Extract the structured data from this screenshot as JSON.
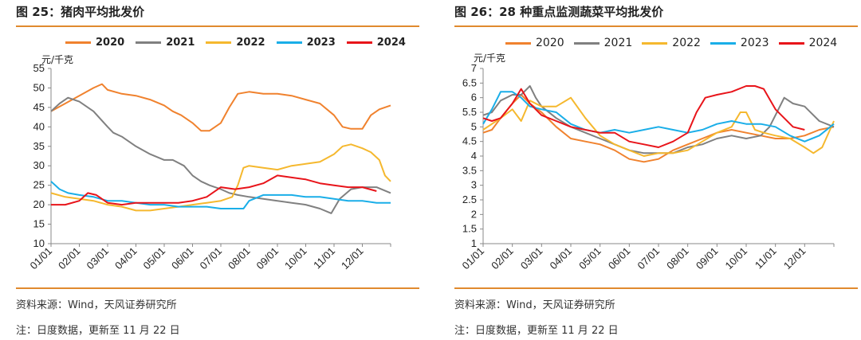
{
  "left_panel": {
    "title": "图 25：猪肉平均批发价",
    "source": "资料来源：Wind，天风证券研究所",
    "note": "注：日度数据，更新至 11 月 22 日"
  },
  "right_panel": {
    "title": "图 26：28 种重点监测蔬菜平均批发价",
    "source": "资料来源：Wind，天风证券研究所",
    "note": "注：日度数据，更新至 11 月 22 日"
  },
  "colors": {
    "2020": "#f0822e",
    "2021": "#808080",
    "2022": "#f5b82e",
    "2023": "#1aaee8",
    "2024": "#e8141a",
    "accent_rule": "#e08a2e"
  },
  "chart_data": [
    {
      "type": "line",
      "title": "",
      "ylabel": "元/千克",
      "xlabel": "",
      "ylim": [
        10,
        55
      ],
      "yticks": [
        10,
        15,
        20,
        25,
        30,
        35,
        40,
        45,
        50,
        55
      ],
      "categories": [
        "01/01",
        "02/01",
        "03/01",
        "04/01",
        "05/01",
        "06/01",
        "07/01",
        "08/01",
        "09/01",
        "10/01",
        "11/01",
        "12/01"
      ],
      "x_range": [
        0,
        12
      ],
      "legend_position": "top",
      "grid": false,
      "series": [
        {
          "name": "2020",
          "color": "#f0822e",
          "x": [
            0,
            0.5,
            1,
            1.5,
            1.8,
            2,
            2.5,
            3,
            3.5,
            4,
            4.3,
            4.6,
            5,
            5.3,
            5.6,
            6,
            6.3,
            6.6,
            7,
            7.5,
            8,
            8.5,
            9,
            9.5,
            10,
            10.3,
            10.6,
            11,
            11.3,
            11.6,
            12
          ],
          "y": [
            44,
            46,
            48,
            50,
            51,
            49.5,
            48.5,
            48,
            47,
            45.5,
            44,
            43,
            41,
            39,
            39,
            41,
            45,
            48.5,
            49,
            48.5,
            48.5,
            48,
            47,
            46,
            43,
            40,
            39.5,
            39.5,
            43,
            44.5,
            45.5
          ]
        },
        {
          "name": "2021",
          "color": "#808080",
          "x": [
            0,
            0.3,
            0.6,
            1,
            1.5,
            2,
            2.2,
            2.5,
            3,
            3.5,
            4,
            4.3,
            4.7,
            5,
            5.3,
            5.6,
            6,
            6.3,
            6.6,
            7,
            7.5,
            8,
            8.5,
            9,
            9.5,
            9.9,
            10.2,
            10.6,
            11,
            11.5,
            12
          ],
          "y": [
            44,
            46,
            47.5,
            46.5,
            44,
            40,
            38.5,
            37.5,
            35,
            33,
            31.5,
            31.5,
            30,
            27.5,
            26,
            25,
            24,
            23,
            22.5,
            22,
            21.5,
            21,
            20.5,
            20,
            19,
            17.8,
            21.5,
            24,
            24.5,
            24.5,
            23
          ]
        },
        {
          "name": "2022",
          "color": "#f5b82e",
          "x": [
            0,
            0.5,
            1,
            1.5,
            2,
            2.5,
            3,
            3.5,
            4,
            4.5,
            5,
            5.5,
            6,
            6.4,
            6.6,
            6.8,
            7,
            7.5,
            8,
            8.5,
            9,
            9.5,
            10,
            10.3,
            10.6,
            11,
            11.3,
            11.6,
            11.8,
            12
          ],
          "y": [
            23,
            22,
            21.5,
            21,
            20,
            19.5,
            18.5,
            18.5,
            19,
            19.5,
            20,
            20.5,
            21,
            22,
            25,
            29.5,
            30,
            29.5,
            29,
            30,
            30.5,
            31,
            33,
            35,
            35.5,
            34.5,
            33.5,
            31.5,
            27.5,
            26
          ]
        },
        {
          "name": "2023",
          "color": "#1aaee8",
          "x": [
            0,
            0.3,
            0.6,
            1,
            1.5,
            2,
            2.5,
            3,
            3.5,
            4,
            4.5,
            5,
            5.5,
            6,
            6.5,
            6.8,
            7,
            7.5,
            8,
            8.5,
            9,
            9.5,
            10,
            10.5,
            11,
            11.5,
            12
          ],
          "y": [
            26,
            24,
            23,
            22.5,
            22,
            21,
            21,
            20.5,
            20,
            20,
            19.5,
            19.5,
            19.5,
            19,
            19,
            19,
            21,
            22.5,
            22.5,
            22.5,
            22,
            22,
            21.5,
            21,
            21,
            20.5,
            20.5
          ]
        },
        {
          "name": "2024",
          "color": "#e8141a",
          "x": [
            0,
            0.5,
            1,
            1.3,
            1.6,
            2,
            2.5,
            3,
            3.5,
            4,
            4.5,
            5,
            5.5,
            6,
            6.5,
            7,
            7.5,
            8,
            8.5,
            9,
            9.5,
            10,
            10.5,
            11,
            11.5
          ],
          "y": [
            20,
            20,
            21,
            23,
            22.5,
            20.5,
            20,
            20.5,
            20.5,
            20.5,
            20.5,
            21,
            22,
            24.5,
            24,
            24.5,
            25.5,
            27.5,
            27,
            26.5,
            25.5,
            25,
            24.5,
            24.5,
            23.5
          ]
        }
      ]
    },
    {
      "type": "line",
      "title": "",
      "ylabel": "元/千克",
      "xlabel": "",
      "ylim": [
        1,
        7
      ],
      "yticks": [
        1,
        1.5,
        2,
        2.5,
        3,
        3.5,
        4,
        4.5,
        5,
        5.5,
        6,
        6.5,
        7
      ],
      "categories": [
        "01/01",
        "02/01",
        "03/01",
        "04/01",
        "05/01",
        "06/01",
        "07/01",
        "08/01",
        "09/01",
        "10/01",
        "11/01",
        "12/01"
      ],
      "x_range": [
        0,
        12
      ],
      "legend_position": "top",
      "grid": false,
      "series": [
        {
          "name": "2020",
          "color": "#f0822e",
          "x": [
            0,
            0.3,
            0.6,
            1,
            1.3,
            1.6,
            2,
            2.5,
            3,
            3.5,
            4,
            4.5,
            5,
            5.5,
            6,
            6.5,
            7,
            7.5,
            8,
            8.5,
            9,
            9.5,
            10,
            10.5,
            11,
            11.5,
            12
          ],
          "y": [
            4.8,
            4.9,
            5.3,
            5.8,
            6.1,
            5.8,
            5.5,
            5.0,
            4.6,
            4.5,
            4.4,
            4.2,
            3.9,
            3.8,
            3.9,
            4.2,
            4.4,
            4.6,
            4.8,
            4.9,
            4.8,
            4.7,
            4.6,
            4.6,
            4.7,
            4.9,
            5.0
          ]
        },
        {
          "name": "2021",
          "color": "#808080",
          "x": [
            0,
            0.3,
            0.6,
            1,
            1.3,
            1.6,
            1.8,
            2,
            2.5,
            3,
            3.5,
            4,
            4.5,
            5,
            5.5,
            6,
            6.5,
            7,
            7.5,
            8,
            8.5,
            9,
            9.5,
            9.8,
            10,
            10.3,
            10.6,
            11,
            11.5,
            12
          ],
          "y": [
            5.4,
            5.5,
            5.9,
            6.1,
            6.1,
            6.4,
            6.0,
            5.7,
            5.3,
            5.0,
            4.8,
            4.6,
            4.4,
            4.2,
            4.1,
            4.1,
            4.1,
            4.3,
            4.4,
            4.6,
            4.7,
            4.6,
            4.7,
            5.0,
            5.4,
            6.0,
            5.8,
            5.7,
            5.2,
            5.0
          ]
        },
        {
          "name": "2022",
          "color": "#f5b82e",
          "x": [
            0,
            0.3,
            0.6,
            1,
            1.3,
            1.6,
            2,
            2.5,
            3,
            3.5,
            4,
            4.5,
            5,
            5.5,
            6,
            6.5,
            7,
            7.5,
            8,
            8.5,
            8.8,
            9,
            9.3,
            9.6,
            10,
            10.5,
            11,
            11.3,
            11.6,
            12
          ],
          "y": [
            4.9,
            5.1,
            5.3,
            5.6,
            5.2,
            5.9,
            5.7,
            5.7,
            6.0,
            5.3,
            4.7,
            4.4,
            4.2,
            4.0,
            4.1,
            4.1,
            4.2,
            4.5,
            4.8,
            5.0,
            5.5,
            5.5,
            4.9,
            4.8,
            4.7,
            4.6,
            4.3,
            4.1,
            4.3,
            5.2
          ]
        },
        {
          "name": "2023",
          "color": "#1aaee8",
          "x": [
            0,
            0.3,
            0.6,
            1,
            1.3,
            1.6,
            2,
            2.5,
            3,
            3.5,
            4,
            4.5,
            5,
            5.5,
            6,
            6.5,
            7,
            7.5,
            8,
            8.5,
            9,
            9.5,
            10,
            10.5,
            11,
            11.5,
            12
          ],
          "y": [
            5.1,
            5.6,
            6.2,
            6.2,
            6.0,
            5.7,
            5.6,
            5.5,
            5.1,
            4.9,
            4.8,
            4.9,
            4.8,
            4.9,
            5.0,
            4.9,
            4.8,
            4.9,
            5.1,
            5.2,
            5.1,
            5.1,
            5.0,
            4.7,
            4.5,
            4.7,
            5.1
          ]
        },
        {
          "name": "2024",
          "color": "#e8141a",
          "x": [
            0,
            0.3,
            0.6,
            1,
            1.3,
            1.6,
            2,
            2.5,
            3,
            3.5,
            4,
            4.5,
            5,
            5.5,
            6,
            6.5,
            7,
            7.3,
            7.6,
            8,
            8.5,
            9,
            9.3,
            9.6,
            10,
            10.3,
            10.6,
            11
          ],
          "y": [
            5.3,
            5.2,
            5.3,
            5.8,
            6.3,
            5.8,
            5.4,
            5.2,
            5.0,
            4.9,
            4.8,
            4.8,
            4.5,
            4.4,
            4.3,
            4.5,
            4.8,
            5.5,
            6.0,
            6.1,
            6.2,
            6.4,
            6.4,
            6.3,
            5.6,
            5.3,
            5.0,
            4.9
          ]
        }
      ]
    }
  ]
}
